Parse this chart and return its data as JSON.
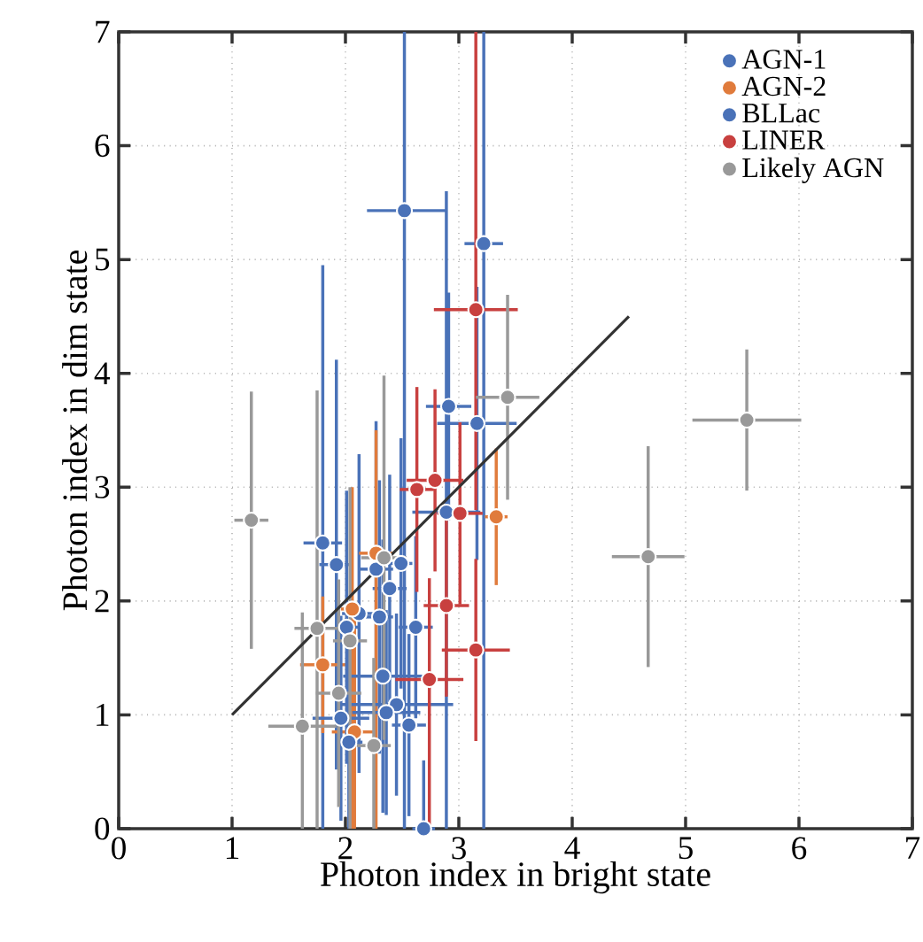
{
  "chart_data": {
    "type": "scatter",
    "xlabel": "Photon index in bright state",
    "ylabel": "Photon index in dim state",
    "xlim": [
      0,
      7
    ],
    "ylim": [
      0,
      7
    ],
    "xticks": [
      0,
      1,
      2,
      3,
      4,
      5,
      6,
      7
    ],
    "yticks": [
      0,
      1,
      2,
      3,
      4,
      5,
      6,
      7
    ],
    "grid": true,
    "legend": "top right",
    "marker": "circle",
    "series": [
      {
        "name": "AGN-1",
        "color": "#4a72b8",
        "x": [
          2.52,
          3.22,
          2.91,
          3.16,
          2.89,
          1.8,
          1.92,
          2.27,
          2.49,
          2.39,
          2.12,
          2.3,
          2.62
        ],
        "values": [
          5.43,
          5.14,
          3.71,
          3.56,
          2.78,
          2.51,
          2.32,
          2.28,
          2.33,
          2.11,
          1.89,
          1.86,
          1.77
        ],
        "xerrors": [
          [
            2.19,
            2.89
          ],
          0.17,
          0.2,
          0.35,
          0.3,
          0.17,
          0.15,
          0.15,
          0.1,
          0.15,
          0.15,
          0.12,
          0.15
        ],
        "errors": [
          [
            0,
            7
          ],
          [
            0,
            7
          ],
          1.0,
          1.2,
          [
            0,
            5.6
          ],
          [
            0,
            4.95
          ],
          1.8,
          1.3,
          1.1,
          1.0,
          1.4,
          1.2,
          0.8
        ]
      },
      {
        "name": "AGN-2",
        "color": "#e07b3c",
        "x": [
          3.33,
          2.27,
          2.06,
          1.8,
          2.08
        ],
        "values": [
          2.74,
          2.42,
          1.93,
          1.44,
          0.85
        ],
        "xerrors": [
          0.1,
          0.15,
          0.1,
          0.2,
          0.2
        ],
        "errors": [
          0.6,
          [
            0,
            3.5
          ],
          [
            0,
            3.0
          ],
          0.6,
          [
            0,
            1.9
          ]
        ]
      },
      {
        "name": "BLLac",
        "color": "#4a72b8",
        "x": [
          2.01,
          2.33,
          2.45,
          2.36,
          1.96,
          2.56,
          2.03,
          2.69
        ],
        "values": [
          1.77,
          1.34,
          1.09,
          1.02,
          0.97,
          0.91,
          0.76,
          0.0
        ],
        "xerrors": [
          0.1,
          0.35,
          0.5,
          0.3,
          0.25,
          0.15,
          0.12,
          0.1
        ],
        "errors": [
          1.2,
          1.2,
          0.8,
          0.9,
          0.9,
          0.8,
          [
            0,
            1.8
          ],
          [
            0,
            0.6
          ]
        ]
      },
      {
        "name": "LINER",
        "color": "#c8403f",
        "x": [
          3.15,
          2.79,
          2.63,
          3.01,
          2.89,
          3.15,
          2.74
        ],
        "values": [
          4.56,
          3.06,
          2.98,
          2.77,
          1.96,
          1.57,
          1.31
        ],
        "xerrors": [
          0.37,
          0.25,
          0.15,
          0.2,
          0.2,
          0.3,
          0.3
        ],
        "errors": [
          [
            2.8,
            7
          ],
          0.8,
          0.9,
          0.8,
          0.8,
          0.8,
          [
            0,
            2.2
          ]
        ]
      },
      {
        "name": "Likely AGN",
        "color": "#999999",
        "x": [
          3.43,
          1.17,
          2.34,
          1.75,
          2.04,
          1.94,
          1.62,
          2.25,
          5.54,
          4.67
        ],
        "values": [
          3.79,
          2.71,
          2.38,
          1.76,
          1.65,
          1.19,
          0.9,
          0.73,
          3.59,
          2.39
        ],
        "xerrors": [
          0.28,
          0.15,
          0.2,
          0.2,
          0.15,
          0.2,
          0.3,
          0.15,
          0.48,
          0.32
        ],
        "errors": [
          0.9,
          1.13,
          1.6,
          [
            0,
            3.85
          ],
          [
            0,
            3.0
          ],
          1.0,
          [
            0,
            1.9
          ],
          [
            0,
            1.5
          ],
          0.62,
          0.97
        ]
      },
      {
        "type": "line",
        "marker": "none",
        "color": "#333333",
        "x": [
          1,
          4.5
        ],
        "values": [
          1,
          4.5
        ]
      }
    ]
  }
}
